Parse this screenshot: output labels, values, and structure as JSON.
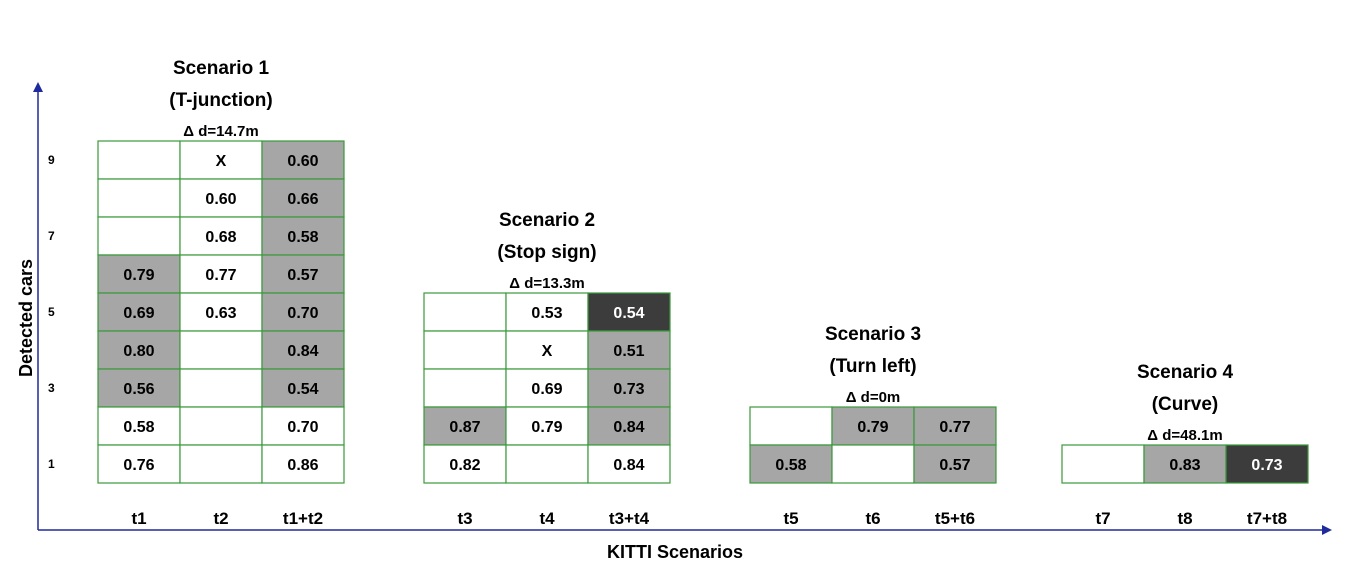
{
  "colors": {
    "grid_border": "#3a9a3a",
    "axis": "#1f2a9c",
    "light_fill": "#a6a6a6",
    "dark_fill": "#3c3c3c",
    "empty_fill": "#ffffff",
    "text": "#000000",
    "text_on_dark": "#ffffff"
  },
  "axes": {
    "x_label": "KITTI Scenarios",
    "y_label": "Detected cars",
    "y_ticks": [
      "1",
      "3",
      "5",
      "7",
      "9"
    ]
  },
  "scenarios": [
    {
      "title_line1": "Scenario 1",
      "title_line2": "(T-junction)",
      "delta": "Δ d=14.7m",
      "columns": [
        "t1",
        "t2",
        "t1+t2"
      ],
      "rows": [
        [
          {
            "v": "",
            "f": "w"
          },
          {
            "v": "X",
            "f": "w"
          },
          {
            "v": "0.60",
            "f": "g"
          }
        ],
        [
          {
            "v": "",
            "f": "w"
          },
          {
            "v": "0.60",
            "f": "w"
          },
          {
            "v": "0.66",
            "f": "g"
          }
        ],
        [
          {
            "v": "",
            "f": "w"
          },
          {
            "v": "0.68",
            "f": "w"
          },
          {
            "v": "0.58",
            "f": "g"
          }
        ],
        [
          {
            "v": "0.79",
            "f": "g"
          },
          {
            "v": "0.77",
            "f": "w"
          },
          {
            "v": "0.57",
            "f": "g"
          }
        ],
        [
          {
            "v": "0.69",
            "f": "g"
          },
          {
            "v": "0.63",
            "f": "w"
          },
          {
            "v": "0.70",
            "f": "g"
          }
        ],
        [
          {
            "v": "0.80",
            "f": "g"
          },
          {
            "v": "",
            "f": "w"
          },
          {
            "v": "0.84",
            "f": "g"
          }
        ],
        [
          {
            "v": "0.56",
            "f": "g"
          },
          {
            "v": "",
            "f": "w"
          },
          {
            "v": "0.54",
            "f": "g"
          }
        ],
        [
          {
            "v": "0.58",
            "f": "w"
          },
          {
            "v": "",
            "f": "w"
          },
          {
            "v": "0.70",
            "f": "w"
          }
        ],
        [
          {
            "v": "0.76",
            "f": "w"
          },
          {
            "v": "",
            "f": "w"
          },
          {
            "v": "0.86",
            "f": "w"
          }
        ]
      ]
    },
    {
      "title_line1": "Scenario 2",
      "title_line2": "(Stop sign)",
      "delta": "Δ d=13.3m",
      "columns": [
        "t3",
        "t4",
        "t3+t4"
      ],
      "rows": [
        [
          {
            "v": "",
            "f": "w"
          },
          {
            "v": "0.53",
            "f": "w"
          },
          {
            "v": "0.54",
            "f": "d"
          }
        ],
        [
          {
            "v": "",
            "f": "w"
          },
          {
            "v": "X",
            "f": "w"
          },
          {
            "v": "0.51",
            "f": "g"
          }
        ],
        [
          {
            "v": "",
            "f": "w"
          },
          {
            "v": "0.69",
            "f": "w"
          },
          {
            "v": "0.73",
            "f": "g"
          }
        ],
        [
          {
            "v": "0.87",
            "f": "g"
          },
          {
            "v": "0.79",
            "f": "w"
          },
          {
            "v": "0.84",
            "f": "g"
          }
        ],
        [
          {
            "v": "0.82",
            "f": "w"
          },
          {
            "v": "",
            "f": "w"
          },
          {
            "v": "0.84",
            "f": "w"
          }
        ]
      ]
    },
    {
      "title_line1": "Scenario 3",
      "title_line2": "(Turn left)",
      "delta": "Δ d=0m",
      "columns": [
        "t5",
        "t6",
        "t5+t6"
      ],
      "rows": [
        [
          {
            "v": "",
            "f": "w"
          },
          {
            "v": "0.79",
            "f": "g"
          },
          {
            "v": "0.77",
            "f": "g"
          }
        ],
        [
          {
            "v": "0.58",
            "f": "g"
          },
          {
            "v": "",
            "f": "w"
          },
          {
            "v": "0.57",
            "f": "g"
          }
        ]
      ]
    },
    {
      "title_line1": "Scenario 4",
      "title_line2": "(Curve)",
      "delta": "Δ d=48.1m",
      "columns": [
        "t7",
        "t8",
        "t7+t8"
      ],
      "rows": [
        [
          {
            "v": "",
            "f": "w"
          },
          {
            "v": "0.83",
            "f": "g"
          },
          {
            "v": "0.73",
            "f": "d"
          }
        ]
      ]
    }
  ]
}
